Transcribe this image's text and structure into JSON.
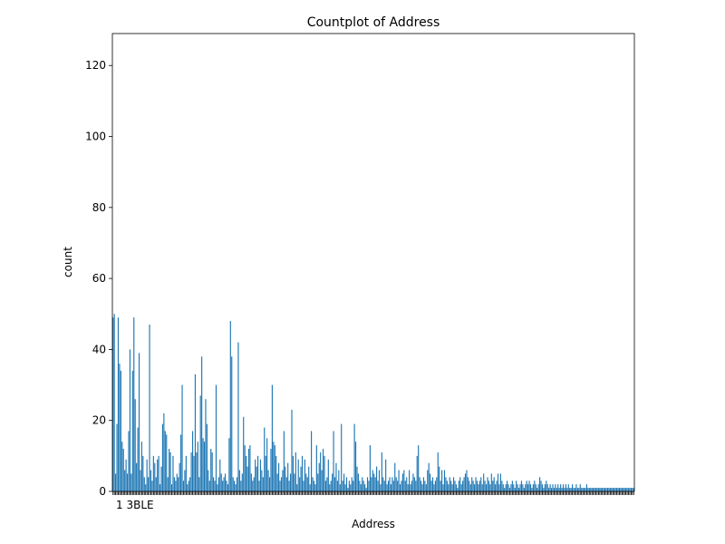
{
  "chart_data": {
    "type": "bar",
    "title": "Countplot of Address",
    "xlabel": "Address",
    "ylabel": "count",
    "ylim": [
      0,
      129
    ],
    "yticks": [
      0,
      20,
      40,
      60,
      80,
      100,
      120
    ],
    "bar_color": "#1f77b4",
    "x_tick_label_overlap": "1 3BLE",
    "values": [
      49,
      50,
      5,
      19,
      49,
      36,
      34,
      14,
      12,
      6,
      9,
      5,
      17,
      40,
      5,
      34,
      49,
      26,
      8,
      18,
      39,
      6,
      14,
      10,
      4,
      2,
      9,
      4,
      47,
      6,
      3,
      10,
      8,
      4,
      9,
      10,
      2,
      7,
      19,
      22,
      17,
      16,
      4,
      12,
      11,
      2,
      10,
      4,
      3,
      5,
      4,
      8,
      16,
      30,
      3,
      6,
      10,
      2,
      3,
      4,
      11,
      17,
      10,
      33,
      11,
      14,
      4,
      27,
      38,
      15,
      14,
      26,
      19,
      6,
      3,
      12,
      11,
      4,
      3,
      30,
      2,
      4,
      9,
      5,
      3,
      4,
      5,
      3,
      2,
      15,
      48,
      38,
      4,
      3,
      2,
      4,
      42,
      6,
      3,
      5,
      21,
      13,
      10,
      7,
      12,
      13,
      5,
      3,
      4,
      9,
      7,
      10,
      3,
      9,
      6,
      4,
      18,
      10,
      15,
      6,
      4,
      12,
      30,
      14,
      13,
      10,
      5,
      8,
      3,
      4,
      6,
      17,
      7,
      4,
      8,
      3,
      5,
      23,
      10,
      5,
      11,
      2,
      9,
      4,
      7,
      10,
      3,
      9,
      5,
      4,
      7,
      2,
      17,
      4,
      3,
      2,
      13,
      5,
      8,
      11,
      6,
      12,
      10,
      3,
      4,
      9,
      2,
      3,
      5,
      17,
      4,
      8,
      3,
      6,
      2,
      19,
      3,
      5,
      2,
      4,
      1,
      3,
      2,
      4,
      3,
      19,
      14,
      7,
      5,
      3,
      2,
      4,
      3,
      2,
      1,
      4,
      3,
      13,
      4,
      6,
      5,
      4,
      7,
      3,
      6,
      2,
      11,
      4,
      3,
      9,
      2,
      3,
      4,
      2,
      4,
      3,
      8,
      4,
      3,
      6,
      2,
      3,
      5,
      6,
      3,
      4,
      2,
      6,
      2,
      3,
      5,
      4,
      3,
      10,
      13,
      4,
      3,
      2,
      4,
      3,
      2,
      6,
      8,
      5,
      3,
      4,
      2,
      3,
      4,
      11,
      7,
      3,
      6,
      2,
      6,
      4,
      3,
      2,
      4,
      3,
      2,
      4,
      3,
      2,
      1,
      3,
      4,
      2,
      3,
      4,
      5,
      6,
      4,
      3,
      2,
      4,
      3,
      2,
      4,
      3,
      2,
      3,
      4,
      2,
      5,
      3,
      2,
      4,
      3,
      2,
      5,
      3,
      4,
      2,
      3,
      5,
      2,
      5,
      3,
      2,
      1,
      2,
      3,
      2,
      1,
      2,
      3,
      2,
      1,
      3,
      2,
      1,
      2,
      3,
      2,
      1,
      2,
      3,
      2,
      3,
      2,
      1,
      2,
      3,
      2,
      1,
      2,
      4,
      3,
      2,
      1,
      2,
      3,
      2,
      1,
      2,
      1,
      2,
      1,
      2,
      1,
      2,
      1,
      2,
      1,
      2,
      1,
      2,
      1,
      2,
      1,
      1,
      2,
      1,
      1,
      2,
      1,
      1,
      2,
      1,
      1,
      1,
      1,
      2,
      1,
      1,
      1,
      1,
      1,
      1,
      1,
      1,
      1,
      1,
      1,
      1,
      1,
      1,
      1,
      1,
      1,
      1,
      1,
      1,
      1,
      1,
      1,
      1,
      1,
      1,
      1,
      1,
      1,
      1,
      1,
      1,
      1,
      1,
      1,
      1
    ]
  }
}
